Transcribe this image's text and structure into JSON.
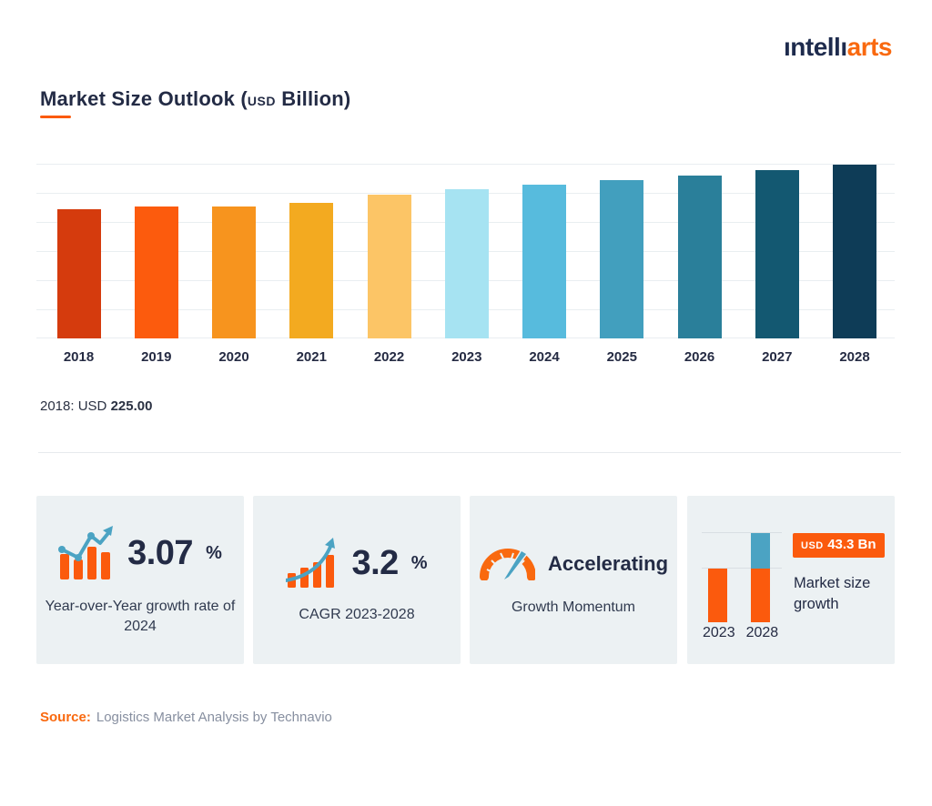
{
  "logo": {
    "part1": "ıntellı",
    "part2": "arts"
  },
  "header": {
    "title_prefix": "Market Size Outlook (",
    "title_currency": "USD",
    "title_suffix": " Billion)"
  },
  "chart_data": {
    "type": "bar",
    "title": "Market Size Outlook (USD Billion)",
    "unit": "USD Billion",
    "categories": [
      "2018",
      "2019",
      "2020",
      "2021",
      "2022",
      "2023",
      "2024",
      "2025",
      "2026",
      "2027",
      "2028"
    ],
    "values": [
      225.0,
      229.1,
      228.9,
      236.1,
      249.5,
      258.9,
      266.8,
      275.1,
      283.6,
      292.4,
      302.2
    ],
    "bar_colors": [
      "#d53b0d",
      "#fc5b0d",
      "#f7941e",
      "#f3aa20",
      "#fcc566",
      "#a6e3f2",
      "#57bbdd",
      "#429fbe",
      "#2a7f9a",
      "#135871",
      "#0e3c57"
    ],
    "ylim": [
      0,
      320
    ],
    "grid": true,
    "legend": false,
    "annotation": "2018: USD 225.00"
  },
  "tooltip": {
    "year": "2018:",
    "currency": "USD",
    "value": "225.00"
  },
  "cards": [
    {
      "icon": "bar-chart-trendline-icon",
      "value": "3.07",
      "suffix": "%",
      "caption": "Year-over-Year growth rate of 2024"
    },
    {
      "icon": "bar-chart-up-arrow-icon",
      "value": "3.2",
      "suffix": "%",
      "caption": "CAGR 2023-2028"
    },
    {
      "icon": "speedometer-icon",
      "value": "Accelerating",
      "caption": "Growth Momentum"
    },
    {
      "icon": "mini-growth-bars-icon",
      "badge_currency": "USD",
      "badge_amount": "43.3 Bn",
      "caption": "Market size growth",
      "mini_years": [
        "2023",
        "2028"
      ]
    }
  ],
  "source": {
    "label": "Source:",
    "text": "Logistics Market Analysis by Technavio"
  },
  "colors": {
    "accent_orange": "#fb5a0d",
    "logo_navy": "#1e2b4d",
    "logo_orange": "#f9690f",
    "card_bg": "#ecf1f3",
    "grid_line": "#e9eef1",
    "text_dark": "#232b45",
    "text_gray": "#878fa0",
    "icon_blue": "#4ba3c3",
    "mini_bar_blue": "#4ba3c3"
  }
}
